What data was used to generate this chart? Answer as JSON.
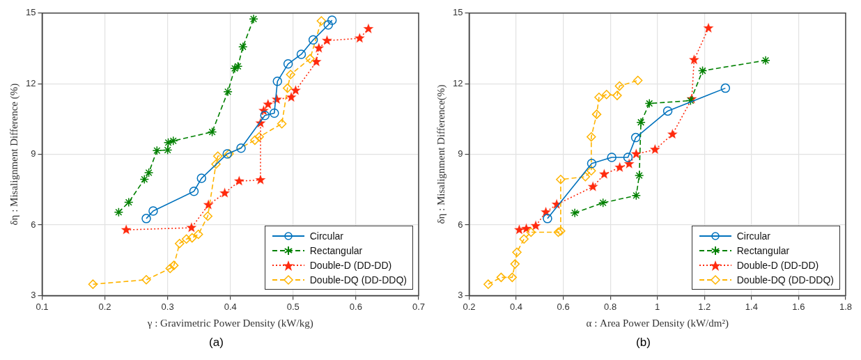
{
  "chart_data": [
    {
      "type": "line",
      "xlabel": "γ : Gravimetric Power Density (kW/kg)",
      "ylabel": "δη : Misalignment Difference (%)",
      "annotations": [
        "(a)"
      ],
      "xlim": [
        0.1,
        0.7
      ],
      "xticks": [
        0.1,
        0.2,
        0.3,
        0.4,
        0.5,
        0.6,
        0.7
      ],
      "ylim": [
        3,
        15
      ],
      "yticks": [
        3,
        6,
        9,
        12,
        15
      ],
      "grid": true,
      "legend": "bottom right",
      "series": [
        {
          "name": "Circular",
          "color": "#0072bd",
          "marker": "circle",
          "line_style": "solid",
          "x": [
            0.266,
            0.277,
            0.342,
            0.354,
            0.395,
            0.417,
            0.455,
            0.47,
            0.475,
            0.492,
            0.513,
            0.532,
            0.556,
            0.562
          ],
          "values": [
            6.27,
            6.59,
            7.43,
            7.98,
            9.02,
            9.26,
            10.65,
            10.75,
            12.1,
            12.84,
            13.25,
            13.86,
            14.5,
            14.7
          ]
        },
        {
          "name": "Rectangular",
          "color": "#008000",
          "marker": "cross",
          "line_style": "dashed",
          "x": [
            0.222,
            0.238,
            0.263,
            0.27,
            0.283,
            0.3,
            0.301,
            0.309,
            0.371,
            0.396,
            0.407,
            0.412,
            0.42,
            0.437
          ],
          "values": [
            6.54,
            6.96,
            7.94,
            8.22,
            9.16,
            9.18,
            9.5,
            9.57,
            9.95,
            11.66,
            12.65,
            12.74,
            13.57,
            14.75
          ]
        },
        {
          "name": "Double-D (DD-DD)",
          "color": "#ff2a0e",
          "marker": "star",
          "line_style": "dotted",
          "x": [
            0.234,
            0.338,
            0.365,
            0.391,
            0.414,
            0.448,
            0.448,
            0.453,
            0.46,
            0.474,
            0.497,
            0.504,
            0.537,
            0.541,
            0.554,
            0.606,
            0.62
          ],
          "values": [
            5.79,
            5.88,
            6.85,
            7.35,
            7.86,
            7.91,
            10.32,
            10.85,
            11.12,
            11.33,
            11.42,
            11.71,
            12.93,
            13.51,
            13.83,
            13.93,
            14.33
          ]
        },
        {
          "name": "Double-DQ (DD-DDQ)",
          "color": "#ffb400",
          "marker": "diamond",
          "line_style": "dashed",
          "x": [
            0.181,
            0.266,
            0.304,
            0.31,
            0.319,
            0.33,
            0.339,
            0.349,
            0.364,
            0.377,
            0.38,
            0.398,
            0.439,
            0.446,
            0.482,
            0.491,
            0.496,
            0.527,
            0.545
          ],
          "values": [
            3.48,
            3.67,
            4.15,
            4.28,
            5.21,
            5.4,
            5.45,
            5.6,
            6.37,
            8.58,
            8.92,
            9.02,
            9.6,
            9.74,
            10.3,
            11.81,
            12.39,
            13.06,
            14.67
          ]
        }
      ]
    },
    {
      "type": "line",
      "xlabel": "α : Area Power Density (kW/dm²)",
      "ylabel": "δη : Misalignment Difference(%)",
      "annotations": [
        "(b)"
      ],
      "xlim": [
        0.2,
        1.8
      ],
      "xticks": [
        0.2,
        0.4,
        0.6,
        0.8,
        1,
        1.2,
        1.4,
        1.6,
        1.8
      ],
      "ylim": [
        3,
        15
      ],
      "yticks": [
        3,
        6,
        9,
        12,
        15
      ],
      "grid": true,
      "legend": "bottom right",
      "series": [
        {
          "name": "Circular",
          "color": "#0072bd",
          "marker": "circle",
          "line_style": "solid",
          "x": [
            0.533,
            0.721,
            0.806,
            0.875,
            0.908,
            1.044,
            1.289
          ],
          "values": [
            6.27,
            8.61,
            8.87,
            8.87,
            9.71,
            10.84,
            11.81
          ]
        },
        {
          "name": "Rectangular",
          "color": "#008000",
          "marker": "cross",
          "line_style": "dashed",
          "x": [
            0.649,
            0.769,
            0.91,
            0.923,
            0.93,
            0.966,
            1.141,
            1.192,
            1.46
          ],
          "values": [
            6.51,
            6.94,
            7.25,
            8.1,
            10.36,
            11.16,
            11.28,
            12.55,
            12.99
          ]
        },
        {
          "name": "Double-D (DD-DD)",
          "color": "#ff2a0e",
          "marker": "star",
          "line_style": "dotted",
          "x": [
            0.413,
            0.443,
            0.483,
            0.526,
            0.572,
            0.726,
            0.774,
            0.84,
            0.88,
            0.91,
            0.99,
            1.064,
            1.146,
            1.156,
            1.217
          ],
          "values": [
            5.79,
            5.84,
            5.96,
            6.54,
            6.87,
            7.62,
            8.15,
            8.44,
            8.59,
            9.01,
            9.2,
            9.85,
            11.35,
            13.01,
            14.36
          ]
        },
        {
          "name": "Double-DQ (DD-DDQ)",
          "color": "#ffb400",
          "marker": "diamond",
          "line_style": "dashed",
          "x": [
            0.281,
            0.336,
            0.383,
            0.395,
            0.403,
            0.433,
            0.463,
            0.579,
            0.589,
            0.589,
            0.694,
            0.719,
            0.719,
            0.742,
            0.752,
            0.784,
            0.829,
            0.839,
            0.917
          ],
          "values": [
            3.48,
            3.77,
            3.77,
            4.34,
            4.84,
            5.4,
            5.69,
            5.69,
            5.74,
            7.93,
            8.05,
            8.3,
            9.74,
            10.7,
            11.42,
            11.54,
            11.5,
            11.9,
            12.14
          ]
        }
      ]
    }
  ]
}
